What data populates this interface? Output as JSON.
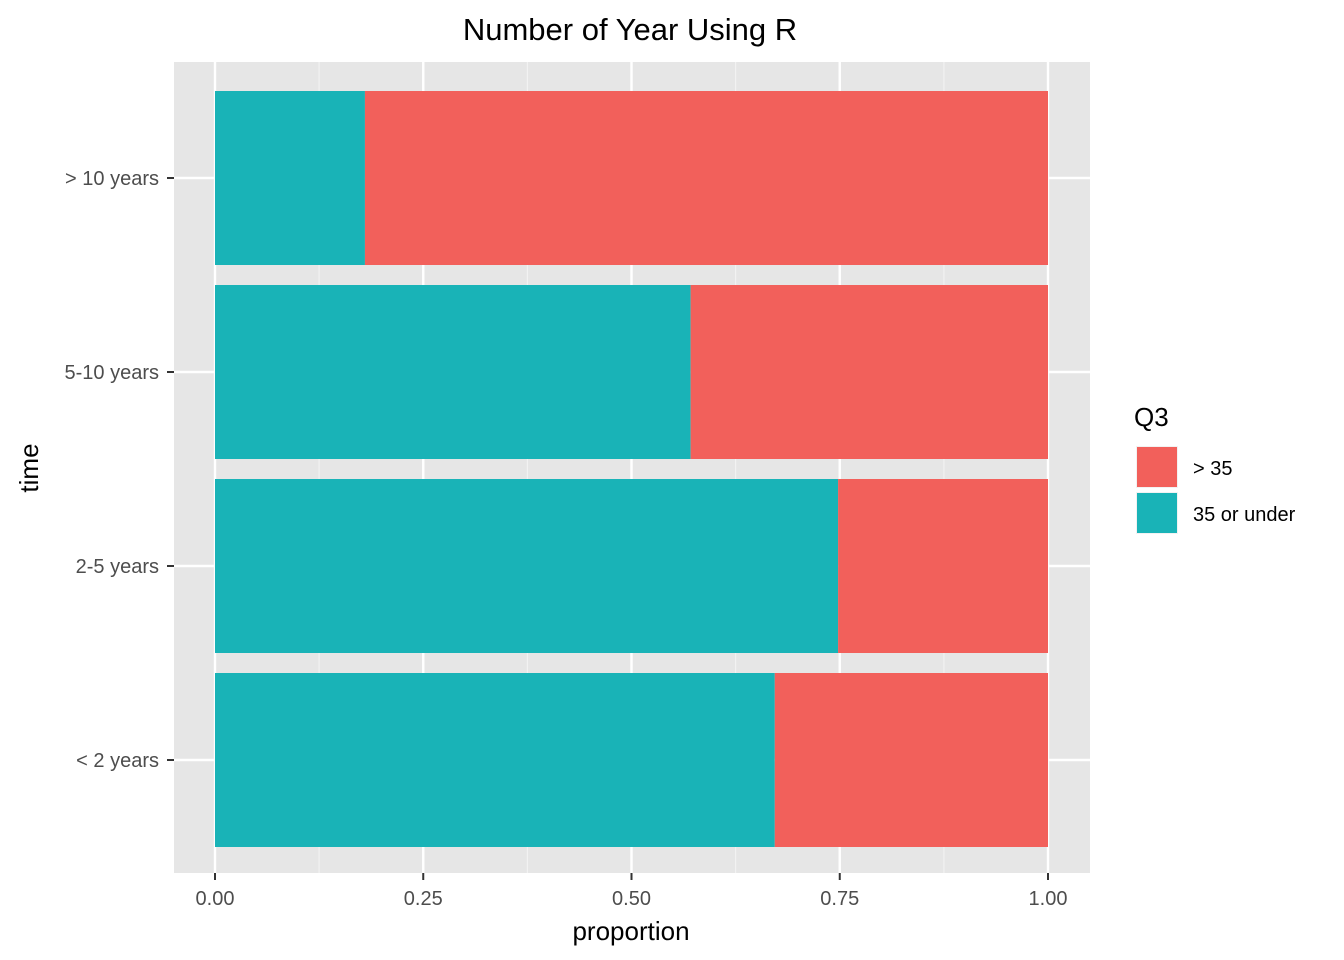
{
  "chart_data": {
    "type": "bar",
    "orientation": "horizontal",
    "stacked": true,
    "title": "Number of Year Using R",
    "xlabel": "proportion",
    "ylabel": "time",
    "xlim": [
      0,
      1
    ],
    "x_ticks": [
      "0.00",
      "0.25",
      "0.50",
      "0.75",
      "1.00"
    ],
    "x_tick_values": [
      0,
      0.25,
      0.5,
      0.75,
      1.0
    ],
    "categories": [
      "> 10 years",
      "5-10 years",
      "2-5 years",
      "< 2 years"
    ],
    "series": [
      {
        "name": "35 or under",
        "color": "#19b3b7",
        "values": [
          0.18,
          0.571,
          0.748,
          0.672
        ]
      },
      {
        "name": "> 35",
        "color": "#f2605b",
        "values": [
          0.82,
          0.429,
          0.252,
          0.328
        ]
      }
    ],
    "legend": {
      "title": "Q3",
      "position": "right",
      "items": [
        {
          "label": "> 35",
          "color": "#f2605b"
        },
        {
          "label": "35 or under",
          "color": "#19b3b7"
        }
      ]
    },
    "grid": true,
    "panel_background": "#e6e6e6"
  }
}
